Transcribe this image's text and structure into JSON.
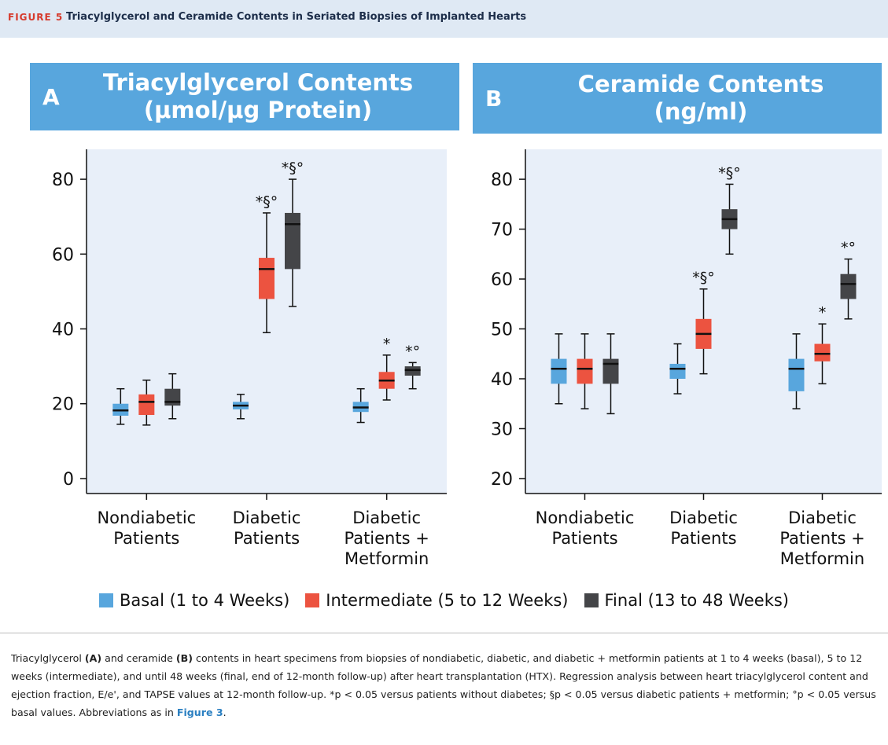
{
  "header": {
    "label": "FIGURE 5",
    "title": "Triacylglycerol and Ceramide Contents in Seriated Biopsies of Implanted Hearts"
  },
  "legend": [
    {
      "name": "Basal (1 to 4 Weeks)",
      "color": "#58a6dd"
    },
    {
      "name": "Intermediate (5 to 12 Weeks)",
      "color": "#ec5340"
    },
    {
      "name": "Final (13 to 48 Weeks)",
      "color": "#444548"
    }
  ],
  "chart_data": [
    {
      "type": "box",
      "panel": "A",
      "title": "Triacylglycerol Contents (μmol/μg Protein)",
      "categories": [
        "Nondiabetic Patients",
        "Diabetic Patients",
        "Diabetic Patients + Metformin"
      ],
      "ylim": [
        -4,
        88
      ],
      "yticks": [
        0,
        20,
        40,
        60,
        80
      ],
      "series": [
        {
          "color": "#58a6dd",
          "values": [
            [
              14.5,
              16.8,
              18.2,
              20,
              24
            ],
            [
              16,
              18.5,
              19.5,
              20.5,
              22.5
            ],
            [
              15,
              17.8,
              19,
              20.5,
              24
            ]
          ],
          "annotations": [
            null,
            null,
            null
          ]
        },
        {
          "color": "#ec5340",
          "values": [
            [
              14.3,
              17,
              20.5,
              22.5,
              26.3
            ],
            [
              39,
              48,
              56,
              59,
              71
            ],
            [
              21,
              24,
              26.2,
              28.5,
              33
            ]
          ],
          "annotations": [
            null,
            "*§°",
            "*"
          ]
        },
        {
          "color": "#444548",
          "values": [
            [
              16,
              19.5,
              20.5,
              24,
              28
            ],
            [
              46,
              56,
              68,
              71,
              80
            ],
            [
              24,
              27.5,
              29,
              30,
              31
            ]
          ],
          "annotations": [
            null,
            "*§°",
            "*°"
          ]
        }
      ]
    },
    {
      "type": "box",
      "panel": "B",
      "title": "Ceramide Contents (ng/ml)",
      "categories": [
        "Nondiabetic Patients",
        "Diabetic Patients",
        "Diabetic Patients + Metformin"
      ],
      "ylim": [
        17,
        86
      ],
      "yticks": [
        20,
        30,
        40,
        50,
        60,
        70,
        80
      ],
      "series": [
        {
          "color": "#58a6dd",
          "values": [
            [
              35,
              39,
              42,
              44,
              49
            ],
            [
              37,
              40,
              42,
              43,
              47
            ],
            [
              34,
              37.5,
              42,
              44,
              49
            ]
          ],
          "annotations": [
            null,
            null,
            null
          ]
        },
        {
          "color": "#ec5340",
          "values": [
            [
              34,
              39,
              42,
              44,
              49
            ],
            [
              41,
              46,
              49,
              52,
              58
            ],
            [
              39,
              43.5,
              45,
              47,
              51
            ]
          ],
          "annotations": [
            null,
            "*§°",
            "*"
          ]
        },
        {
          "color": "#444548",
          "values": [
            [
              33,
              39,
              43,
              44,
              49
            ],
            [
              65,
              70,
              72,
              74,
              79
            ],
            [
              52,
              56,
              59,
              61,
              64
            ]
          ],
          "annotations": [
            null,
            "*§°",
            "*°"
          ]
        }
      ]
    }
  ],
  "caption": [
    "Triacylglycerol ",
    "(A)",
    " and ceramide ",
    "(B)",
    " contents in heart specimens from biopsies of nondiabetic, diabetic, and diabetic + metformin patients at 1 to 4 weeks (basal), 5 to 12 weeks (intermediate), and until 48 weeks (final, end of 12-month follow-up) after heart transplantation (HTX). Regression analysis between heart triacylglycerol content and ejection fraction, E/e', and TAPSE values at 12-month follow-up. *p < 0.05 versus patients without diabetes; §p < 0.05 versus diabetic patients + metformin; °p < 0.05 versus basal values. Abbreviations as in ",
    "Figure 3",
    "."
  ]
}
